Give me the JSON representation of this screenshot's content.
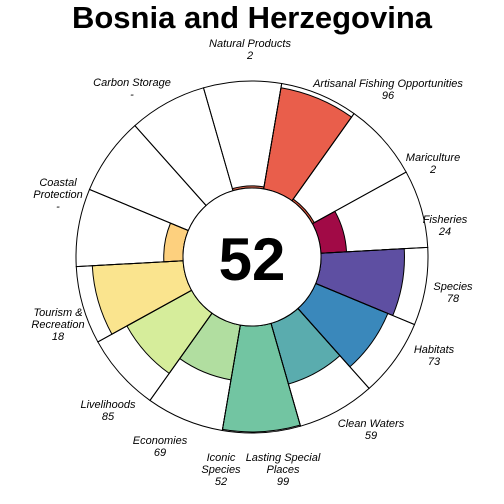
{
  "chart_data": {
    "type": "flower",
    "title": "Bosnia and Herzegovina",
    "center_value": "52",
    "max_value": 100,
    "petals": [
      {
        "name": "Natural Products",
        "score": "2",
        "value": 2,
        "color": "#d9674e"
      },
      {
        "name": "Artisanal Fishing Opportunities",
        "score": "96",
        "value": 96,
        "color": "#e95e4b"
      },
      {
        "name": "Mariculture",
        "score": "2",
        "value": 2,
        "color": "#e2583f"
      },
      {
        "name": "Fisheries",
        "score": "24",
        "value": 24,
        "color": "#a10a46"
      },
      {
        "name": "Species",
        "score": "78",
        "value": 78,
        "color": "#5e4fa2"
      },
      {
        "name": "Habitats",
        "score": "73",
        "value": 73,
        "color": "#3a88bb"
      },
      {
        "name": "Clean Waters",
        "score": "59",
        "value": 59,
        "color": "#5aacae"
      },
      {
        "name": "Lasting Special Places",
        "score": "99",
        "value": 99,
        "color": "#72c5a2"
      },
      {
        "name": "Iconic Species",
        "score": "52",
        "value": 52,
        "color": "#b1dea0"
      },
      {
        "name": "Economies",
        "score": "69",
        "value": 69,
        "color": "#d6ed9b"
      },
      {
        "name": "Livelihoods",
        "score": "85",
        "value": 85,
        "color": "#fae48e"
      },
      {
        "name": "Tourism & Recreation",
        "score": "18",
        "value": 18,
        "color": "#fdd07e"
      },
      {
        "name": "Coastal Protection",
        "score": "-",
        "value": null,
        "color": "#ffffff"
      },
      {
        "name": "Carbon Storage",
        "score": "-",
        "value": null,
        "color": "#ffffff"
      }
    ]
  }
}
